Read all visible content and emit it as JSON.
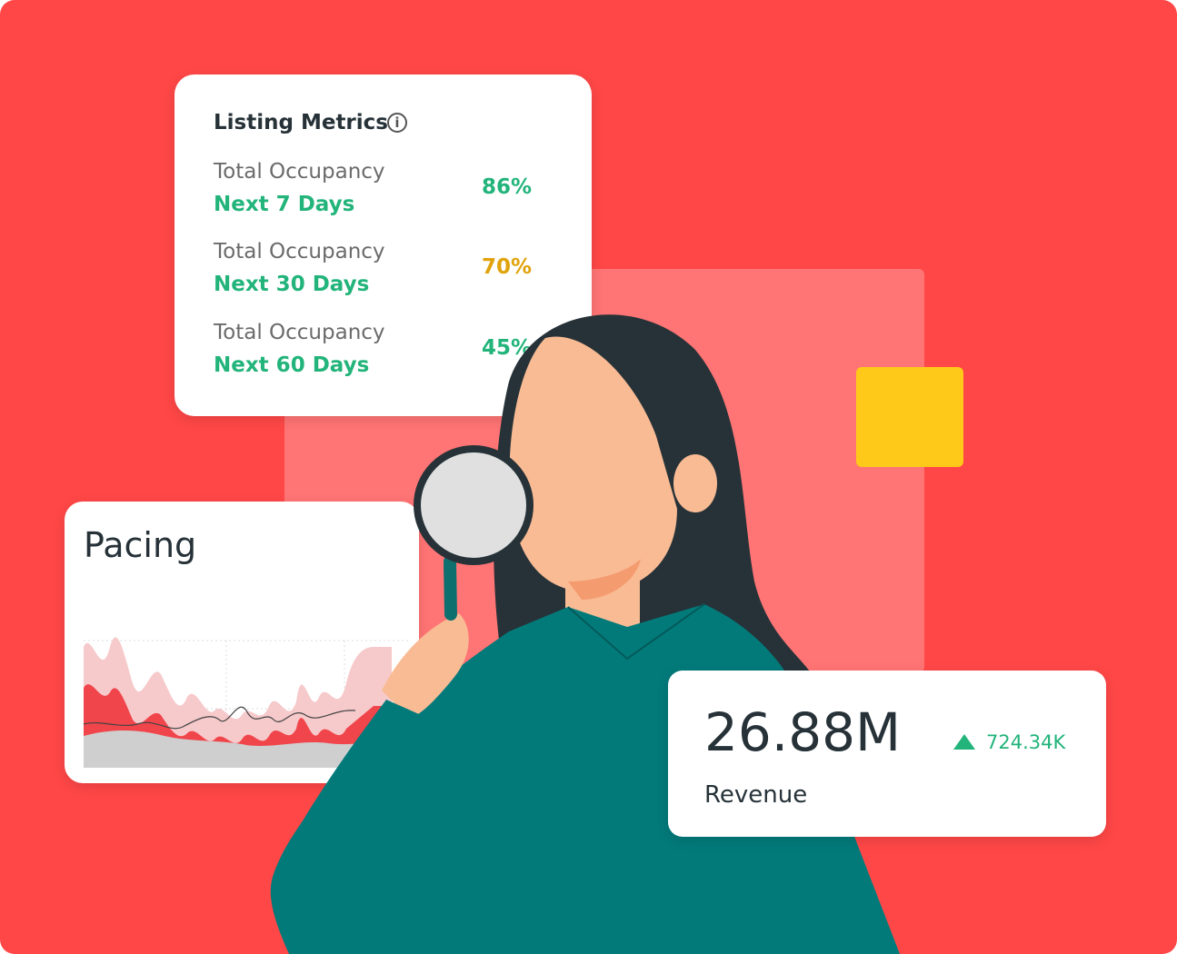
{
  "listing_metrics": {
    "title": "Listing Metrics",
    "rows": [
      {
        "label": "Total Occupancy",
        "period": "Next 7 Days",
        "value": "86%"
      },
      {
        "label": "Total Occupancy",
        "period": "Next 30 Days",
        "value": "70%"
      },
      {
        "label": "Total Occupancy",
        "period": "Next 60 Days",
        "value": "45%"
      }
    ]
  },
  "pacing": {
    "title": "Pacing"
  },
  "revenue": {
    "value": "26.88M",
    "change": "724.34K",
    "label": "Revenue"
  }
}
